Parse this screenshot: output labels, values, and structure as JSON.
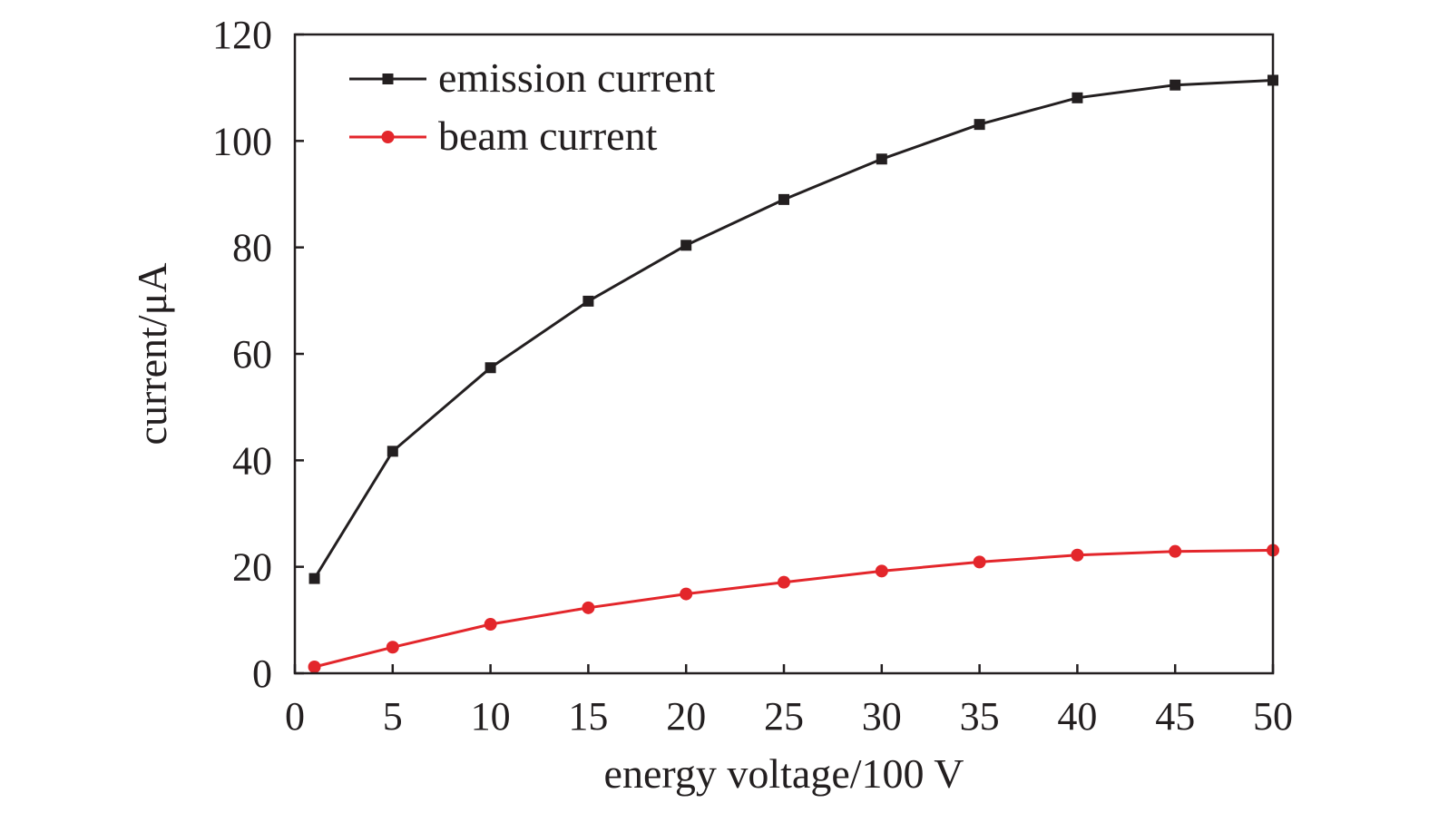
{
  "chart_data": {
    "type": "line",
    "xlabel": "energy voltage/100 V",
    "ylabel": "current/μA",
    "xlim": [
      0,
      50
    ],
    "ylim": [
      0,
      120
    ],
    "xticks": [
      0,
      5,
      10,
      15,
      20,
      25,
      30,
      35,
      40,
      45,
      50
    ],
    "yticks": [
      0,
      20,
      40,
      60,
      80,
      100,
      120
    ],
    "x": [
      1,
      5,
      10,
      15,
      20,
      25,
      30,
      35,
      40,
      45,
      50
    ],
    "grid": false,
    "legend_position": "top-left",
    "series": [
      {
        "name": "emission current",
        "marker": "square",
        "color": "#231f20",
        "values": [
          17.8,
          41.7,
          57.4,
          69.9,
          80.4,
          89.0,
          96.6,
          103.1,
          108.1,
          110.5,
          111.4
        ]
      },
      {
        "name": "beam current",
        "marker": "circle",
        "color": "#e3262b",
        "values": [
          1.2,
          4.9,
          9.2,
          12.3,
          14.9,
          17.1,
          19.2,
          20.9,
          22.2,
          22.9,
          23.1
        ]
      }
    ]
  }
}
